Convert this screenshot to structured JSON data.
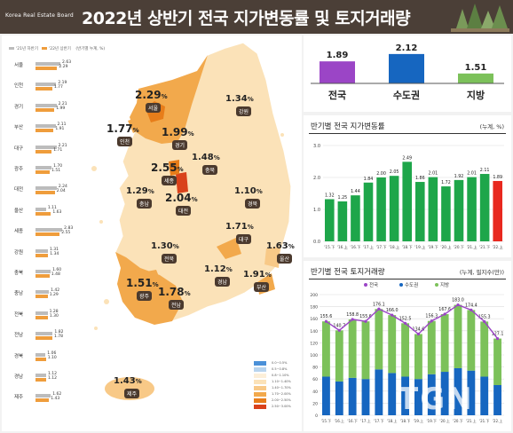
{
  "header": {
    "logo": "Korea Real Estate Board",
    "title": "2022년 상반기 전국 지가변동률 및 토지거래량"
  },
  "colors": {
    "header_bg": "#4b3f37",
    "h1_bar": "#bcbcbc",
    "h2_bar": "#ef9d3c",
    "green": "#1ea64a",
    "red": "#e8281f",
    "purple": "#9b45c6",
    "blue": "#1666c0",
    "lightgreen": "#7cc15a",
    "land": "#fbe2b8",
    "seoul": "#e88a1e"
  },
  "region_legend": {
    "h1": "'21년 하반기",
    "h2": "'22년 상반기",
    "unit": "(반기별 누계, %)"
  },
  "region_bars": [
    {
      "name": "서울",
      "h1": 2.63,
      "h2": 2.29,
      "h1_label": "2.63",
      "h2_label": "2.29"
    },
    {
      "name": "인천",
      "h1": 2.19,
      "h2": 1.77,
      "h1_label": "2.19",
      "h2_label": "1.77"
    },
    {
      "name": "경기",
      "h1": 2.21,
      "h2": 1.99,
      "h1_label": "2.21",
      "h2_label": "1.99"
    },
    {
      "name": "부산",
      "h1": 2.11,
      "h2": 1.91,
      "h1_label": "2.11",
      "h2_label": "1.91"
    },
    {
      "name": "대구",
      "h1": 2.21,
      "h2": 1.71,
      "h1_label": "2.21",
      "h2_label": "1.71"
    },
    {
      "name": "광주",
      "h1": 1.7,
      "h2": 1.51,
      "h1_label": "1.70",
      "h2_label": "1.51"
    },
    {
      "name": "대전",
      "h1": 2.24,
      "h2": 2.04,
      "h1_label": "2.24",
      "h2_label": "2.04"
    },
    {
      "name": "울산",
      "h1": 1.11,
      "h2": 1.63,
      "h1_label": "1.11",
      "h2_label": "1.63"
    },
    {
      "name": "세종",
      "h1": 2.83,
      "h2": 2.55,
      "h1_label": "2.83",
      "h2_label": "2.55"
    },
    {
      "name": "강원",
      "h1": 1.31,
      "h2": 1.34,
      "h1_label": "1.31",
      "h2_label": "1.34"
    },
    {
      "name": "충북",
      "h1": 1.6,
      "h2": 1.48,
      "h1_label": "1.60",
      "h2_label": "1.48"
    },
    {
      "name": "충남",
      "h1": 1.42,
      "h2": 1.29,
      "h1_label": "1.42",
      "h2_label": "1.29"
    },
    {
      "name": "전북",
      "h1": 1.28,
      "h2": 1.3,
      "h1_label": "1.28",
      "h2_label": "1.30"
    },
    {
      "name": "전남",
      "h1": 1.82,
      "h2": 1.78,
      "h1_label": "1.82",
      "h2_label": "1.78"
    },
    {
      "name": "경북",
      "h1": 1.06,
      "h2": 1.1,
      "h1_label": "1.06",
      "h2_label": "1.10"
    },
    {
      "name": "경남",
      "h1": 1.12,
      "h2": 1.12,
      "h1_label": "1.12",
      "h2_label": "1.12"
    },
    {
      "name": "제주",
      "h1": 1.62,
      "h2": 1.43,
      "h1_label": "1.62",
      "h2_label": "1.43"
    }
  ],
  "map": {
    "pct": "%",
    "regions": [
      {
        "id": "seoul",
        "name": "서울",
        "value": "2.29"
      },
      {
        "id": "incheon",
        "name": "인천",
        "value": "1.77"
      },
      {
        "id": "gyeonggi",
        "name": "경기",
        "value": "1.99"
      },
      {
        "id": "gangwon",
        "name": "강원",
        "value": "1.34"
      },
      {
        "id": "sejong",
        "name": "세종",
        "value": "2.55"
      },
      {
        "id": "chungbuk",
        "name": "충북",
        "value": "1.48"
      },
      {
        "id": "chungnam",
        "name": "충남",
        "value": "1.29"
      },
      {
        "id": "daejeon",
        "name": "대전",
        "value": "2.04"
      },
      {
        "id": "gyeongbuk",
        "name": "경북",
        "value": "1.10"
      },
      {
        "id": "daegu",
        "name": "대구",
        "value": "1.71"
      },
      {
        "id": "jeonbuk",
        "name": "전북",
        "value": "1.30"
      },
      {
        "id": "ulsan",
        "name": "울산",
        "value": "1.63"
      },
      {
        "id": "gyeongnam",
        "name": "경남",
        "value": "1.12"
      },
      {
        "id": "busan",
        "name": "부산",
        "value": "1.91"
      },
      {
        "id": "gwangju",
        "name": "광주",
        "value": "1.51"
      },
      {
        "id": "jeonnam",
        "name": "전남",
        "value": "1.78"
      },
      {
        "id": "jeju",
        "name": "제주",
        "value": "1.43"
      }
    ]
  },
  "map_legend": [
    {
      "label": "0.0~0.5%",
      "color": "#4a90d8"
    },
    {
      "label": "0.5~0.8%",
      "color": "#b8d4ee"
    },
    {
      "label": "0.8~1.10%",
      "color": "#fcefd9"
    },
    {
      "label": "1.10~1.40%",
      "color": "#fbe2b8"
    },
    {
      "label": "1.40~1.70%",
      "color": "#f8c987"
    },
    {
      "label": "1.70~2.00%",
      "color": "#f2a94c"
    },
    {
      "label": "2.00~2.50%",
      "color": "#e77d1a"
    },
    {
      "label": "2.50~3.00%",
      "color": "#d9421b"
    }
  ],
  "summary": {
    "items": [
      {
        "name": "전국",
        "label": "1.89",
        "value": 1.89,
        "color": "#9b45c6"
      },
      {
        "name": "수도권",
        "label": "2.12",
        "value": 2.12,
        "color": "#1666c0"
      },
      {
        "name": "지방",
        "label": "1.51",
        "value": 1.51,
        "color": "#7cc15a"
      }
    ]
  },
  "chart1": {
    "title": "반기별 전국 지가변동률",
    "unit": "(누계, %)",
    "chart_data": {
      "type": "bar",
      "categories": [
        "'15.下",
        "'16.上",
        "'16.下",
        "'17.上",
        "'17.下",
        "'18.上",
        "'18.下",
        "'19.上",
        "'19.下",
        "'20.上",
        "'20.下",
        "'21.上",
        "'21.下",
        "'22.上"
      ],
      "values": [
        1.32,
        1.25,
        1.44,
        1.84,
        2.0,
        2.05,
        2.49,
        1.86,
        2.01,
        1.72,
        1.92,
        2.01,
        2.11,
        1.89
      ],
      "labels": [
        "1.32",
        "1.25",
        "1.44",
        "1.84",
        "2.00",
        "2.05",
        "2.49",
        "1.86",
        "2.01",
        "1.72",
        "1.92",
        "2.01",
        "2.11",
        "1.89"
      ],
      "yticks": [
        "0.0",
        "1.0",
        "2.0",
        "3.0"
      ],
      "ylim": [
        0,
        3
      ]
    }
  },
  "chart2": {
    "title": "반기별 전국 토지거래량",
    "unit": "(누계, 필지수(만))",
    "chart_data": {
      "type": "bar",
      "categories": [
        "'15.下",
        "'16.上",
        "'16.下",
        "'17.上",
        "'17.下",
        "'18.上",
        "'18.下",
        "'19.上",
        "'19.下",
        "'20.上",
        "'20.下",
        "'21.上",
        "'21.下",
        "'22.上"
      ],
      "series": [
        {
          "name": "전국",
          "values": [
            155.6,
            140.7,
            158.8,
            155.6,
            176.1,
            166.0,
            152.5,
            134.6,
            156.3,
            167.6,
            183.0,
            174.4,
            155.3,
            127.1
          ],
          "labels": [
            "155.6",
            "140.7",
            "158.8",
            "155.6",
            "176.1",
            "166.0",
            "152.5",
            "134.6",
            "156.3",
            "167.6",
            "183.0",
            "174.4",
            "155.3",
            "127.1"
          ]
        },
        {
          "name": "수도권",
          "values": [
            64,
            56,
            62,
            60,
            76,
            70,
            64,
            60,
            68,
            72,
            78,
            74,
            64,
            50
          ]
        },
        {
          "name": "지방",
          "values": [
            91.6,
            84.7,
            96.8,
            95.6,
            100.1,
            96.0,
            88.5,
            74.6,
            88.3,
            95.6,
            105.0,
            100.4,
            91.3,
            77.1
          ]
        }
      ],
      "yticks": [
        "0",
        "20",
        "40",
        "60",
        "80",
        "100",
        "120",
        "140",
        "160",
        "180",
        "200"
      ],
      "ylim": [
        0,
        200
      ]
    }
  }
}
